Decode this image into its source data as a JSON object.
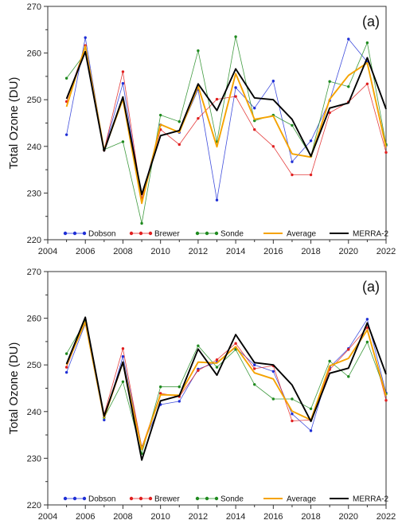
{
  "chart_data": [
    {
      "type": "line",
      "panel_label": "(a)",
      "ylabel": "Total Ozone (DU)",
      "xlim": [
        2004,
        2022
      ],
      "ylim": [
        220,
        270
      ],
      "xticks": [
        "2004",
        "2006",
        "2008",
        "2010",
        "2012",
        "2014",
        "2016",
        "2018",
        "2020",
        "2022"
      ],
      "yticks": [
        "220",
        "230",
        "240",
        "250",
        "260",
        "270"
      ],
      "legend_position": "bottom",
      "series": [
        {
          "name": "Dobson",
          "color": "#1f2fd6",
          "style": "thin-marker",
          "x": [
            2005,
            2006,
            2007,
            2008,
            2009,
            2010,
            2011,
            2012,
            2013,
            2014,
            2015,
            2016,
            2017,
            2018,
            2019,
            2020,
            2021,
            2022
          ],
          "values": [
            242.5,
            263.3,
            239.2,
            253.5,
            228.8,
            244.6,
            243.0,
            252.2,
            228.5,
            252.6,
            248.2,
            254.0,
            236.7,
            241.2,
            249.8,
            263.0,
            258.1,
            240.2
          ]
        },
        {
          "name": "Brewer",
          "color": "#e01f1f",
          "style": "thin-marker",
          "x": [
            2005,
            2006,
            2007,
            2008,
            2009,
            2010,
            2011,
            2012,
            2013,
            2014,
            2015,
            2016,
            2017,
            2018,
            2019,
            2020,
            2021,
            2022
          ],
          "values": [
            249.6,
            261.6,
            239.2,
            256.0,
            228.8,
            243.6,
            240.4,
            246.0,
            250.1,
            250.7,
            243.6,
            240.0,
            233.9,
            233.9,
            247.2,
            249.5,
            253.4,
            238.7
          ]
        },
        {
          "name": "Sonde",
          "color": "#1f8a1f",
          "style": "thin-marker",
          "x": [
            2005,
            2006,
            2007,
            2008,
            2009,
            2010,
            2011,
            2012,
            2013,
            2014,
            2015,
            2016,
            2017,
            2018,
            2019,
            2020,
            2021,
            2022
          ],
          "values": [
            254.6,
            260.0,
            239.3,
            241.0,
            223.5,
            246.7,
            245.3,
            260.5,
            241.0,
            263.5,
            245.5,
            246.7,
            244.5,
            237.9,
            253.9,
            252.8,
            262.2,
            240.4
          ]
        },
        {
          "name": "Average",
          "color": "#f5a300",
          "style": "thick",
          "x": [
            2005,
            2006,
            2007,
            2008,
            2009,
            2010,
            2011,
            2012,
            2013,
            2014,
            2015,
            2016,
            2017,
            2018,
            2019,
            2020,
            2021,
            2022
          ],
          "values": [
            248.5,
            261.5,
            239.2,
            250.1,
            227.8,
            244.7,
            243.0,
            252.9,
            239.9,
            255.6,
            245.8,
            246.5,
            238.4,
            237.7,
            250.1,
            255.2,
            257.9,
            239.8
          ]
        },
        {
          "name": "MERRA-2",
          "color": "#000000",
          "style": "thick",
          "x": [
            2005,
            2006,
            2007,
            2008,
            2009,
            2010,
            2011,
            2012,
            2013,
            2014,
            2015,
            2016,
            2017,
            2018,
            2019,
            2020,
            2021,
            2022
          ],
          "values": [
            250.2,
            260.3,
            239.0,
            250.6,
            229.7,
            242.3,
            243.4,
            253.4,
            247.7,
            256.6,
            250.4,
            250.0,
            245.8,
            237.9,
            248.2,
            249.3,
            259.0,
            248.0
          ]
        }
      ]
    },
    {
      "type": "line",
      "panel_label": "(a)",
      "ylabel": "Total Ozone (DU)",
      "xlim": [
        2004,
        2022
      ],
      "ylim": [
        220,
        270
      ],
      "xticks": [
        "2004",
        "2006",
        "2008",
        "2010",
        "2012",
        "2014",
        "2016",
        "2018",
        "2020",
        "2022"
      ],
      "yticks": [
        "220",
        "230",
        "240",
        "250",
        "260",
        "270"
      ],
      "legend_position": "bottom",
      "series": [
        {
          "name": "Dobson",
          "color": "#1f2fd6",
          "style": "thin-marker",
          "x": [
            2005,
            2006,
            2007,
            2008,
            2009,
            2010,
            2011,
            2012,
            2013,
            2014,
            2015,
            2016,
            2017,
            2018,
            2019,
            2020,
            2021,
            2022
          ],
          "values": [
            248.4,
            258.8,
            238.2,
            251.8,
            232.5,
            241.5,
            242.2,
            249.1,
            250.6,
            253.7,
            250.0,
            248.6,
            239.5,
            235.9,
            249.5,
            253.5,
            259.8,
            244.0
          ]
        },
        {
          "name": "Brewer",
          "color": "#e01f1f",
          "style": "thin-marker",
          "x": [
            2005,
            2006,
            2007,
            2008,
            2009,
            2010,
            2011,
            2012,
            2013,
            2014,
            2015,
            2016,
            2017,
            2018,
            2019,
            2020,
            2021,
            2022
          ],
          "values": [
            249.5,
            259.5,
            239.4,
            253.5,
            232.3,
            243.9,
            243.2,
            248.8,
            251.1,
            254.6,
            249.2,
            249.8,
            238.0,
            238.2,
            249.0,
            253.3,
            258.0,
            242.4
          ]
        },
        {
          "name": "Sonde",
          "color": "#1f8a1f",
          "style": "thin-marker",
          "x": [
            2005,
            2006,
            2007,
            2008,
            2009,
            2010,
            2011,
            2012,
            2013,
            2014,
            2015,
            2016,
            2017,
            2018,
            2019,
            2020,
            2021,
            2022
          ],
          "values": [
            252.4,
            259.3,
            238.7,
            246.4,
            231.0,
            245.3,
            245.3,
            254.1,
            249.5,
            253.3,
            245.8,
            242.7,
            242.7,
            240.6,
            250.8,
            247.5,
            254.9,
            243.8
          ]
        },
        {
          "name": "Average",
          "color": "#f5a300",
          "style": "thick",
          "x": [
            2005,
            2006,
            2007,
            2008,
            2009,
            2010,
            2011,
            2012,
            2013,
            2014,
            2015,
            2016,
            2017,
            2018,
            2019,
            2020,
            2021,
            2022
          ],
          "values": [
            250.0,
            259.2,
            238.7,
            250.6,
            231.9,
            243.6,
            243.5,
            250.6,
            250.4,
            253.9,
            248.3,
            247.0,
            240.1,
            238.2,
            249.8,
            251.4,
            257.5,
            243.4
          ]
        },
        {
          "name": "MERRA-2",
          "color": "#000000",
          "style": "thick",
          "x": [
            2005,
            2006,
            2007,
            2008,
            2009,
            2010,
            2011,
            2012,
            2013,
            2014,
            2015,
            2016,
            2017,
            2018,
            2019,
            2020,
            2021,
            2022
          ],
          "values": [
            250.2,
            260.2,
            239.0,
            250.6,
            229.6,
            242.3,
            243.4,
            253.4,
            247.8,
            256.5,
            250.5,
            250.0,
            245.7,
            237.9,
            248.2,
            249.3,
            259.0,
            248.0
          ]
        }
      ]
    }
  ]
}
